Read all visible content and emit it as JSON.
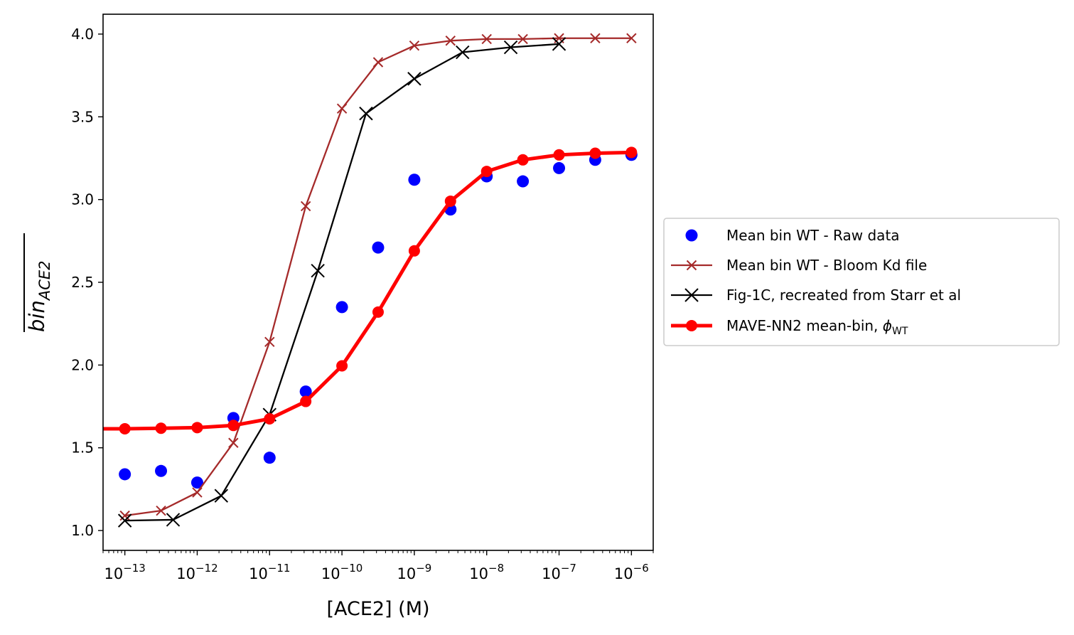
{
  "chart_data": {
    "type": "line",
    "xlabel": "[ACE2] (M)",
    "ylabel": "bin",
    "ylabel_subscript": "ACE2",
    "xscale": "log",
    "xlim": [
      5e-14,
      2e-06
    ],
    "ylim": [
      0.88,
      4.12
    ],
    "x_ticks": [
      {
        "value": 1e-13,
        "base": "10",
        "exp": "−13"
      },
      {
        "value": 1e-12,
        "base": "10",
        "exp": "−12"
      },
      {
        "value": 1e-11,
        "base": "10",
        "exp": "−11"
      },
      {
        "value": 1e-10,
        "base": "10",
        "exp": "−10"
      },
      {
        "value": 1e-09,
        "base": "10",
        "exp": "−9"
      },
      {
        "value": 1e-08,
        "base": "10",
        "exp": "−8"
      },
      {
        "value": 1e-07,
        "base": "10",
        "exp": "−7"
      },
      {
        "value": 1e-06,
        "base": "10",
        "exp": "−6"
      }
    ],
    "y_ticks": [
      {
        "value": 1.0,
        "label": "1.0"
      },
      {
        "value": 1.5,
        "label": "1.5"
      },
      {
        "value": 2.0,
        "label": "2.0"
      },
      {
        "value": 2.5,
        "label": "2.5"
      },
      {
        "value": 3.0,
        "label": "3.0"
      },
      {
        "value": 3.5,
        "label": "3.5"
      },
      {
        "value": 4.0,
        "label": "4.0"
      }
    ],
    "grid": false,
    "legend_position": "center-right outside",
    "series": [
      {
        "name": "Mean bin WT - Raw data",
        "style": "dots",
        "color": "#0000ff",
        "x": [
          1e-13,
          3.16e-13,
          1e-12,
          3.16e-12,
          1e-11,
          3.16e-11,
          1e-10,
          3.16e-10,
          1e-09,
          3.16e-09,
          1e-08,
          3.16e-08,
          1e-07,
          3.16e-07,
          1e-06
        ],
        "y": [
          1.34,
          1.36,
          1.29,
          1.68,
          1.44,
          1.84,
          2.35,
          2.71,
          3.12,
          2.94,
          3.14,
          3.11,
          3.19,
          3.24,
          3.27
        ]
      },
      {
        "name": "Mean bin WT - Bloom Kd file",
        "style": "line-x-small",
        "color": "#a52a2a",
        "x": [
          1e-13,
          3.16e-13,
          1e-12,
          3.16e-12,
          1e-11,
          3.16e-11,
          1e-10,
          3.16e-10,
          1e-09,
          3.16e-09,
          1e-08,
          3.16e-08,
          1e-07,
          3.16e-07,
          1e-06
        ],
        "y": [
          1.09,
          1.12,
          1.23,
          1.53,
          2.14,
          2.96,
          3.55,
          3.83,
          3.93,
          3.96,
          3.97,
          3.97,
          3.975,
          3.975,
          3.975
        ]
      },
      {
        "name": "Fig-1C, recreated from Starr et al",
        "style": "line-x-large",
        "color": "#000000",
        "x": [
          1e-13,
          4.64e-13,
          2.15e-12,
          1e-11,
          4.64e-11,
          2.15e-10,
          1e-09,
          4.64e-09,
          2.15e-08,
          1e-07
        ],
        "y": [
          1.06,
          1.065,
          1.21,
          1.7,
          2.57,
          3.52,
          3.73,
          3.89,
          3.92,
          3.94
        ]
      },
      {
        "name": "MAVE-NN2 mean-bin, ",
        "name_symbol": "ϕ",
        "name_subscript": "WT",
        "style": "thick-line-dots",
        "color": "#ff0000",
        "x": [
          5e-14,
          1e-13,
          3.16e-13,
          1e-12,
          3.16e-12,
          1e-11,
          3.16e-11,
          1e-10,
          3.16e-10,
          1e-09,
          3.16e-09,
          1e-08,
          3.16e-08,
          1e-07,
          3.16e-07,
          1e-06
        ],
        "y": [
          1.615,
          1.615,
          1.618,
          1.622,
          1.635,
          1.675,
          1.78,
          1.995,
          2.32,
          2.69,
          2.99,
          3.17,
          3.24,
          3.27,
          3.28,
          3.285
        ]
      }
    ]
  }
}
